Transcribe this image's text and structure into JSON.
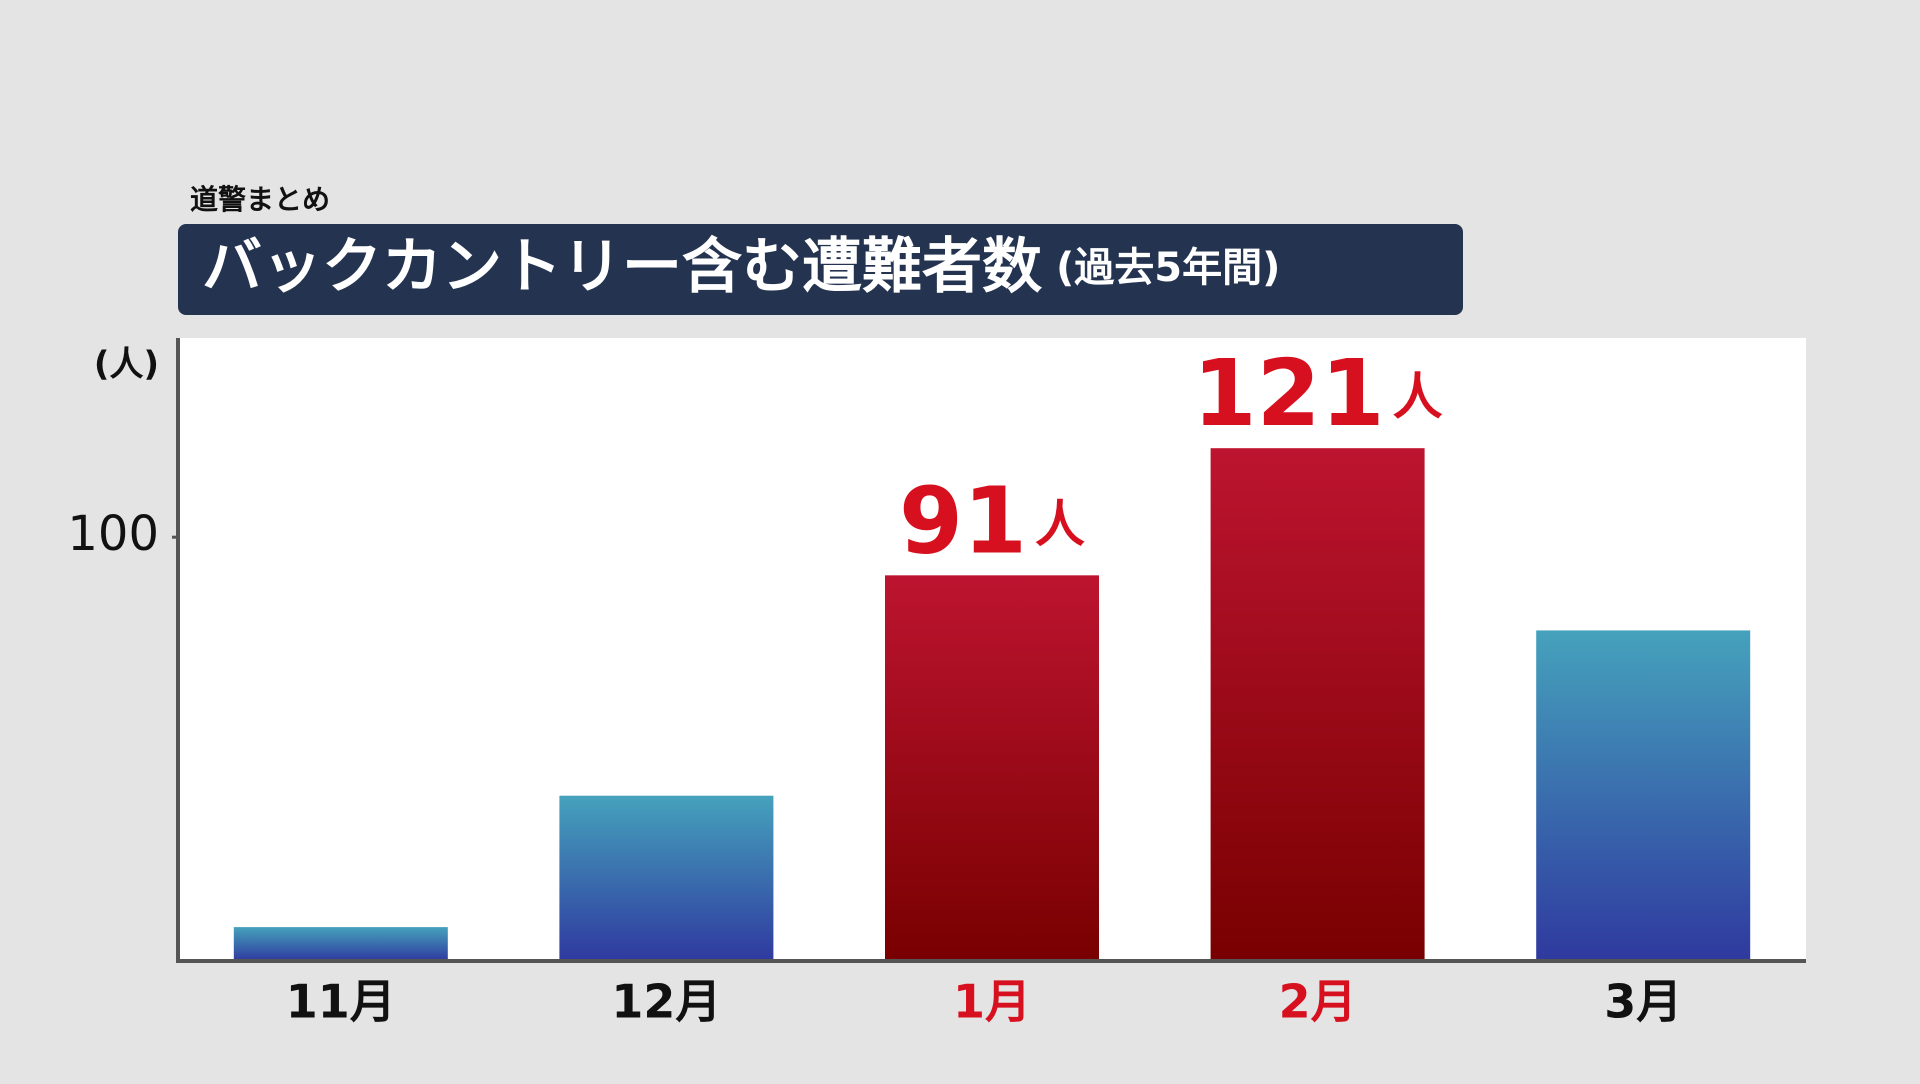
{
  "chart_data": {
    "type": "bar",
    "subtitle": "道警まとめ",
    "title": "バックカントリー含む遭難者数",
    "title_note": "(過去5年間)",
    "y_label": "(人)",
    "categories": [
      "11月",
      "12月",
      "1月",
      "2月",
      "3月"
    ],
    "values": [
      8,
      39,
      91,
      121,
      78
    ],
    "value_labels": [
      null,
      null,
      "91",
      "121",
      null
    ],
    "value_label_unit": "人",
    "bar_colors": [
      "blue",
      "blue",
      "red",
      "red",
      "blue"
    ],
    "palette": {
      "blue": [
        "#45a2bc",
        "#2f399f"
      ],
      "red": [
        "#bd1430",
        "#780000"
      ]
    },
    "category_colors": [
      "#111111",
      "#111111",
      "#d7101f",
      "#d7101f",
      "#111111"
    ],
    "ylim": [
      0,
      147
    ],
    "yticks": [
      100
    ]
  }
}
